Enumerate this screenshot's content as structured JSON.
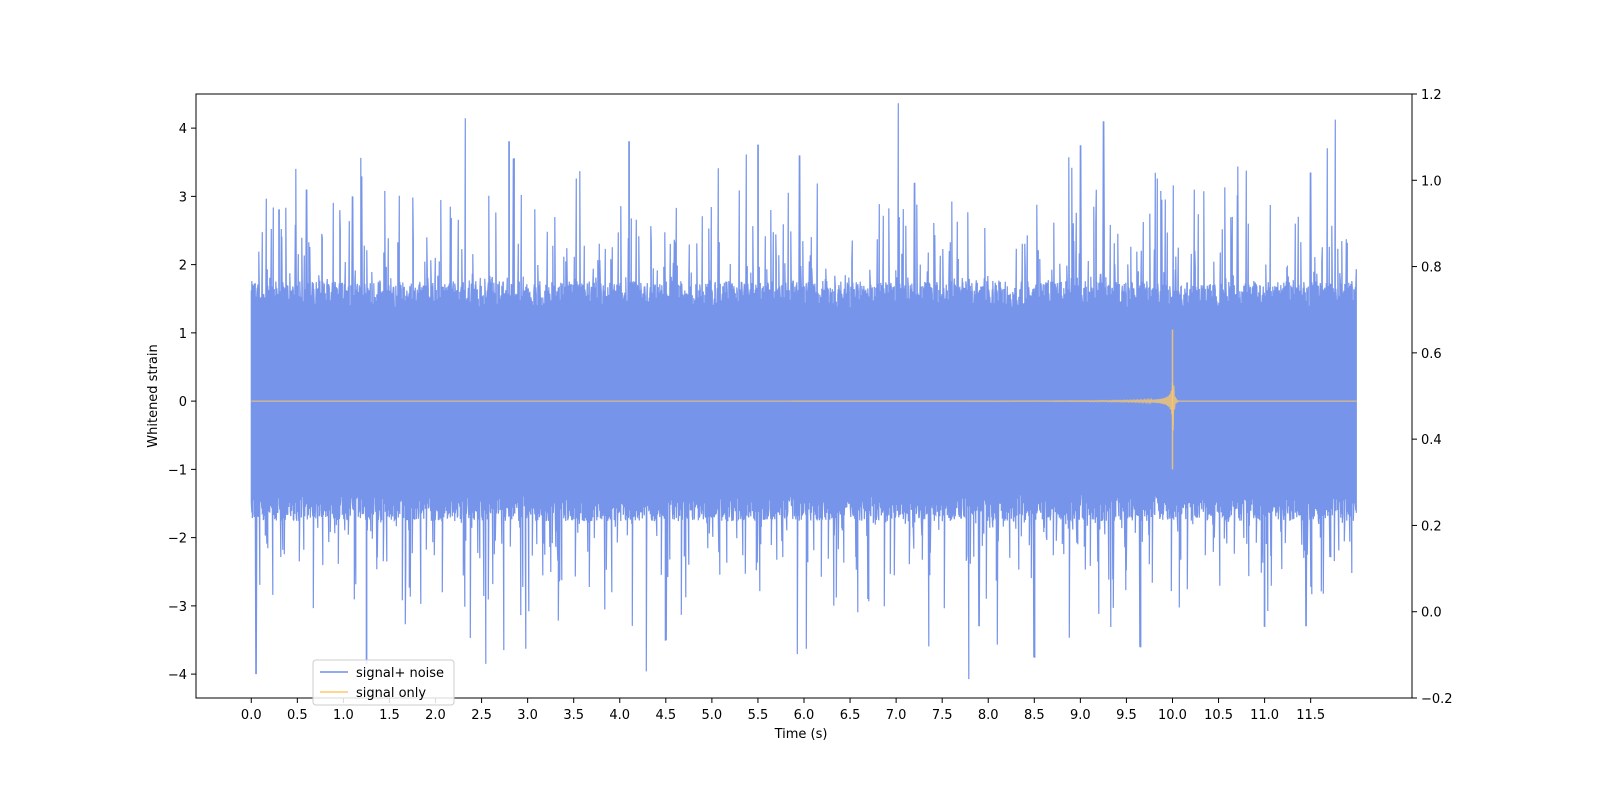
{
  "chart_data": {
    "type": "line",
    "title": "",
    "xlabel": "Time (s)",
    "ylabel": "Whitened strain",
    "xlim": [
      -0.6,
      12.6
    ],
    "ylim": [
      -4.35,
      4.5
    ],
    "y2lim": [
      -0.2,
      1.2
    ],
    "x_ticks": [
      0.0,
      0.5,
      1.0,
      1.5,
      2.0,
      2.5,
      3.0,
      3.5,
      4.0,
      4.5,
      5.0,
      5.5,
      6.0,
      6.5,
      7.0,
      7.5,
      8.0,
      8.5,
      9.0,
      9.5,
      10.0,
      10.5,
      11.0,
      11.5
    ],
    "x_tick_labels": [
      "0.0",
      "0.5",
      "1.0",
      "1.5",
      "2.0",
      "2.5",
      "3.0",
      "3.5",
      "4.0",
      "4.5",
      "5.0",
      "5.5",
      "6.0",
      "6.5",
      "7.0",
      "7.5",
      "8.0",
      "8.5",
      "9.0",
      "9.5",
      "10.0",
      "10.5",
      "11.0",
      "11.5"
    ],
    "y_ticks": [
      -4,
      -3,
      -2,
      -1,
      0,
      1,
      2,
      3,
      4
    ],
    "y_tick_labels": [
      "−4",
      "−3",
      "−2",
      "−1",
      "0",
      "1",
      "2",
      "3",
      "4"
    ],
    "y2_ticks": [
      -0.2,
      0.0,
      0.2,
      0.4,
      0.6,
      0.8,
      1.0,
      1.2
    ],
    "y2_tick_labels": [
      "−0.2",
      "0.0",
      "0.2",
      "0.4",
      "0.6",
      "0.8",
      "1.0",
      "1.2"
    ],
    "grid": false,
    "legend_position": "lower-left",
    "series": [
      {
        "name": "signal+ noise",
        "color": "#6f8ee8",
        "x_range": [
          0.0,
          12.0
        ],
        "envelope": [
          -1.6,
          1.6
        ],
        "peaks_max": [
          [
            0.3,
            2.8
          ],
          [
            0.6,
            3.1
          ],
          [
            1.1,
            3.0
          ],
          [
            2.8,
            3.8
          ],
          [
            2.85,
            3.55
          ],
          [
            4.1,
            3.8
          ],
          [
            5.5,
            3.75
          ],
          [
            5.95,
            3.6
          ],
          [
            7.2,
            3.2
          ],
          [
            9.0,
            3.75
          ],
          [
            9.25,
            4.1
          ],
          [
            11.5,
            3.35
          ]
        ],
        "peaks_min": [
          [
            0.05,
            -4.0
          ],
          [
            1.25,
            -3.85
          ],
          [
            4.5,
            -3.5
          ],
          [
            7.9,
            -3.3
          ],
          [
            8.5,
            -3.75
          ],
          [
            9.65,
            -3.6
          ],
          [
            11.0,
            -3.3
          ],
          [
            11.45,
            -3.3
          ]
        ]
      },
      {
        "name": "signal only",
        "color": "#ffc966",
        "x_range": [
          0.0,
          12.0
        ],
        "chirp_peak_time": 10.0,
        "chirp_peak_amplitude": 1.05,
        "chirp_min_amplitude": -1.0
      }
    ]
  }
}
